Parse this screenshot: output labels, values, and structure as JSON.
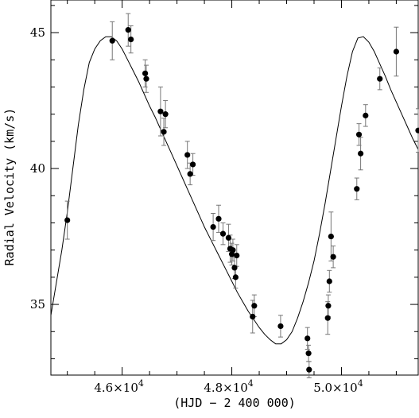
{
  "chart_data": {
    "type": "scatter",
    "title": "",
    "xlabel": "(HJD − 2 400 000)",
    "ylabel": "Radial Velocity (km/s)",
    "xlim": [
      44700,
      51400
    ],
    "ylim": [
      32.4,
      46.2
    ],
    "x_ticks": [
      {
        "value": 46000,
        "mantissa": "4.6",
        "exp": "4"
      },
      {
        "value": 48000,
        "mantissa": "4.8",
        "exp": "4"
      },
      {
        "value": 50000,
        "mantissa": "5.0",
        "exp": "4"
      }
    ],
    "x_tick_times": "×10",
    "y_ticks": [
      {
        "value": 35,
        "label": "35"
      },
      {
        "value": 40,
        "label": "40"
      },
      {
        "value": 45,
        "label": "45"
      }
    ],
    "grid": false,
    "observations": {
      "name": "",
      "points": [
        {
          "x": 45000,
          "y": 38.1,
          "err": 0.7
        },
        {
          "x": 45820,
          "y": 44.7,
          "err": 0.7
        },
        {
          "x": 46110,
          "y": 45.1,
          "err": 0.6
        },
        {
          "x": 46160,
          "y": 44.75,
          "err": 0.5
        },
        {
          "x": 46420,
          "y": 43.5,
          "err": 0.5
        },
        {
          "x": 46440,
          "y": 43.3,
          "err": 0.5
        },
        {
          "x": 46700,
          "y": 42.1,
          "err": 0.9
        },
        {
          "x": 46760,
          "y": 41.35,
          "err": 0.5
        },
        {
          "x": 46790,
          "y": 42.0,
          "err": 0.5
        },
        {
          "x": 47190,
          "y": 40.5,
          "err": 0.5
        },
        {
          "x": 47240,
          "y": 39.8,
          "err": 0.4
        },
        {
          "x": 47290,
          "y": 40.15,
          "err": 0.4
        },
        {
          "x": 47660,
          "y": 37.85,
          "err": 0.5
        },
        {
          "x": 47760,
          "y": 38.15,
          "err": 0.5
        },
        {
          "x": 47840,
          "y": 37.6,
          "err": 0.4
        },
        {
          "x": 47940,
          "y": 37.45,
          "err": 0.5
        },
        {
          "x": 47970,
          "y": 37.05,
          "err": 0.5
        },
        {
          "x": 48000,
          "y": 36.85,
          "err": 0.4
        },
        {
          "x": 48020,
          "y": 37.0,
          "err": 0.4
        },
        {
          "x": 48050,
          "y": 36.35,
          "err": 0.4
        },
        {
          "x": 48070,
          "y": 36.0,
          "err": 0.4
        },
        {
          "x": 48090,
          "y": 36.8,
          "err": 0.4
        },
        {
          "x": 48380,
          "y": 34.55,
          "err": 0.6
        },
        {
          "x": 48410,
          "y": 34.95,
          "err": 0.4
        },
        {
          "x": 48890,
          "y": 34.2,
          "err": 0.4
        },
        {
          "x": 49380,
          "y": 33.75,
          "err": 0.4
        },
        {
          "x": 49400,
          "y": 33.2,
          "err": 0.3
        },
        {
          "x": 49410,
          "y": 32.6,
          "err": 0.3
        },
        {
          "x": 49750,
          "y": 34.5,
          "err": 0.6
        },
        {
          "x": 49760,
          "y": 34.95,
          "err": 0.4
        },
        {
          "x": 49780,
          "y": 35.85,
          "err": 0.4
        },
        {
          "x": 49810,
          "y": 37.5,
          "err": 0.9
        },
        {
          "x": 49850,
          "y": 36.75,
          "err": 0.4
        },
        {
          "x": 50280,
          "y": 39.25,
          "err": 0.4
        },
        {
          "x": 50320,
          "y": 41.25,
          "err": 0.4
        },
        {
          "x": 50350,
          "y": 40.55,
          "err": 0.6
        },
        {
          "x": 50440,
          "y": 41.95,
          "err": 0.4
        },
        {
          "x": 50700,
          "y": 43.3,
          "err": 0.4
        },
        {
          "x": 51000,
          "y": 44.3,
          "err": 0.9
        },
        {
          "x": 51620,
          "y": 41.4,
          "err": 0.8
        }
      ]
    },
    "orbit_fit": {
      "name": "",
      "x": [
        44700,
        44800,
        44900,
        45000,
        45100,
        45200,
        45300,
        45400,
        45500,
        45600,
        45700,
        45800,
        45900,
        46000,
        46100,
        46200,
        46300,
        46400,
        46500,
        46600,
        46700,
        46800,
        46900,
        47000,
        47100,
        47200,
        47300,
        47400,
        47500,
        47600,
        47700,
        47800,
        47900,
        48000,
        48100,
        48200,
        48300,
        48400,
        48500,
        48600,
        48700,
        48800,
        48900,
        49000,
        49100,
        49200,
        49300,
        49400,
        49500,
        49600,
        49700,
        49800,
        49900,
        50000,
        50100,
        50200,
        50300,
        50400,
        50500,
        50600,
        50700,
        50800,
        50900,
        51000,
        51100,
        51200,
        51300,
        51400
      ],
      "y": [
        34.6,
        35.8,
        37.0,
        38.4,
        40.0,
        41.6,
        42.9,
        43.9,
        44.4,
        44.7,
        44.85,
        44.85,
        44.7,
        44.4,
        44.0,
        43.6,
        43.2,
        42.75,
        42.3,
        41.9,
        41.45,
        41.0,
        40.55,
        40.1,
        39.65,
        39.2,
        38.75,
        38.3,
        37.85,
        37.45,
        37.05,
        36.65,
        36.25,
        35.85,
        35.45,
        35.1,
        34.75,
        34.45,
        34.15,
        33.9,
        33.7,
        33.55,
        33.55,
        33.7,
        34.0,
        34.5,
        35.1,
        35.8,
        36.6,
        37.6,
        38.7,
        39.9,
        41.1,
        42.3,
        43.4,
        44.3,
        44.8,
        44.85,
        44.65,
        44.3,
        43.85,
        43.4,
        42.9,
        42.45,
        42.0,
        41.55,
        41.1,
        40.7
      ]
    }
  }
}
